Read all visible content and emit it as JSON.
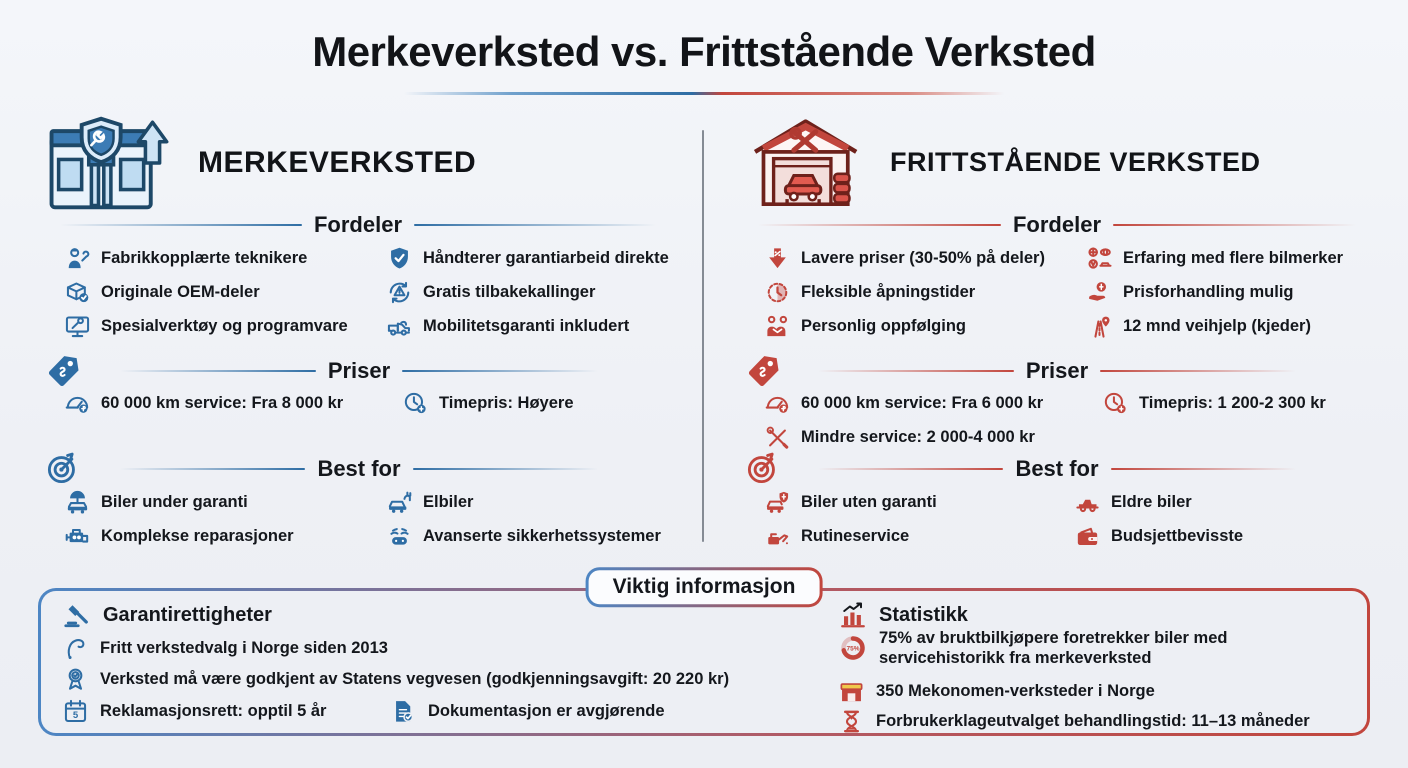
{
  "title": "Merkeverksted vs. Frittstående Verksted",
  "colors": {
    "blue": "#2e6da4",
    "red": "#c2463d",
    "text": "#14171c",
    "background": "#eef0f5"
  },
  "columns": {
    "left": {
      "heading": "MERKEVERKSTED",
      "icon": "dealership-icon",
      "fordeler": {
        "label": "Fordeler",
        "col1": [
          {
            "icon": "technician-icon",
            "text": "Fabrikkopplærte teknikere"
          },
          {
            "icon": "parts-box-icon",
            "text": "Originale OEM-deler"
          },
          {
            "icon": "monitor-wrench-icon",
            "text": "Spesialverktøy og programvare"
          }
        ],
        "col2": [
          {
            "icon": "shield-check-icon",
            "text": "Håndterer garantiarbeid direkte"
          },
          {
            "icon": "recall-icon",
            "text": "Gratis tilbakekallinger"
          },
          {
            "icon": "tow-truck-icon",
            "text": "Mobilitetsgaranti inkludert"
          }
        ]
      },
      "priser": {
        "label": "Priser",
        "icon": "price-tag-icon",
        "col1": [
          {
            "icon": "speedometer-money-icon",
            "text": "60 000 km service: Fra 8 000 kr"
          }
        ],
        "col2": [
          {
            "icon": "clock-money-icon",
            "text": "Timepris: Høyere"
          }
        ]
      },
      "best": {
        "label": "Best for",
        "icon": "target-icon",
        "col1": [
          {
            "icon": "car-umbrella-icon",
            "text": "Biler under garanti"
          },
          {
            "icon": "engine-icon",
            "text": "Komplekse reparasjoner"
          }
        ],
        "col2": [
          {
            "icon": "electric-car-icon",
            "text": "Elbiler"
          },
          {
            "icon": "safety-systems-icon",
            "text": "Avanserte sikkerhetssystemer"
          }
        ]
      }
    },
    "right": {
      "heading": "FRITTSTÅENDE VERKSTED",
      "icon": "garage-icon",
      "fordeler": {
        "label": "Fordeler",
        "col1": [
          {
            "icon": "discount-arrow-icon",
            "text": "Lavere priser (30-50% på deler)"
          },
          {
            "icon": "flexible-clock-icon",
            "text": "Fleksible åpningstider"
          },
          {
            "icon": "handshake-icon",
            "text": "Personlig oppfølging"
          }
        ],
        "col2": [
          {
            "icon": "car-brands-icon",
            "text": "Erfaring med flere bilmerker"
          },
          {
            "icon": "coin-hand-icon",
            "text": "Prisforhandling mulig"
          },
          {
            "icon": "road-pin-icon",
            "text": "12 mnd veihjelp (kjeder)"
          }
        ]
      },
      "priser": {
        "label": "Priser",
        "icon": "price-tag-icon",
        "col1": [
          {
            "icon": "speedometer-money-icon",
            "text": "60 000 km service: Fra 6 000 kr"
          },
          {
            "icon": "crossed-tools-icon",
            "text": "Mindre service: 2 000-4 000 kr"
          }
        ],
        "col2": [
          {
            "icon": "clock-money-icon",
            "text": "Timepris: 1 200-2 300 kr"
          }
        ]
      },
      "best": {
        "label": "Best for",
        "icon": "target-icon",
        "col1": [
          {
            "icon": "car-shield-icon",
            "text": "Biler uten garanti"
          },
          {
            "icon": "oil-can-icon",
            "text": "Rutineservice"
          }
        ],
        "col2": [
          {
            "icon": "classic-car-icon",
            "text": "Eldre biler"
          },
          {
            "icon": "wallet-icon",
            "text": "Budsjettbevisste"
          }
        ]
      }
    }
  },
  "footer": {
    "badge": "Viktig informasjon",
    "garanti": {
      "heading": "Garantirettigheter",
      "icon": "gavel-icon",
      "items": [
        {
          "icon": "hook-icon",
          "text": "Fritt verkstedvalg i Norge siden 2013"
        },
        {
          "icon": "rosette-icon",
          "text": "Verksted må være godkjent av Statens vegvesen (godkjenningsavgift: 20 220 kr)"
        },
        {
          "icon": "calendar5-icon",
          "text": "Reklamasjonsrett: opptil 5 år"
        },
        {
          "icon": "doc-check-icon",
          "text": "Dokumentasjon er avgjørende"
        }
      ]
    },
    "statistikk": {
      "heading": "Statistikk",
      "icon": "chart-icon",
      "donut_label": "75%",
      "items": [
        {
          "icon": "donut75-icon",
          "text": "75% av bruktbilkjøpere foretrekker biler med servicehistorikk fra merkeverksted"
        },
        {
          "icon": "store-icon",
          "text": "350 Mekonomen-verksteder i Norge"
        },
        {
          "icon": "hourglass-icon",
          "text": "Forbrukerklageutvalget behandlingstid: 11–13 måneder"
        }
      ]
    }
  }
}
